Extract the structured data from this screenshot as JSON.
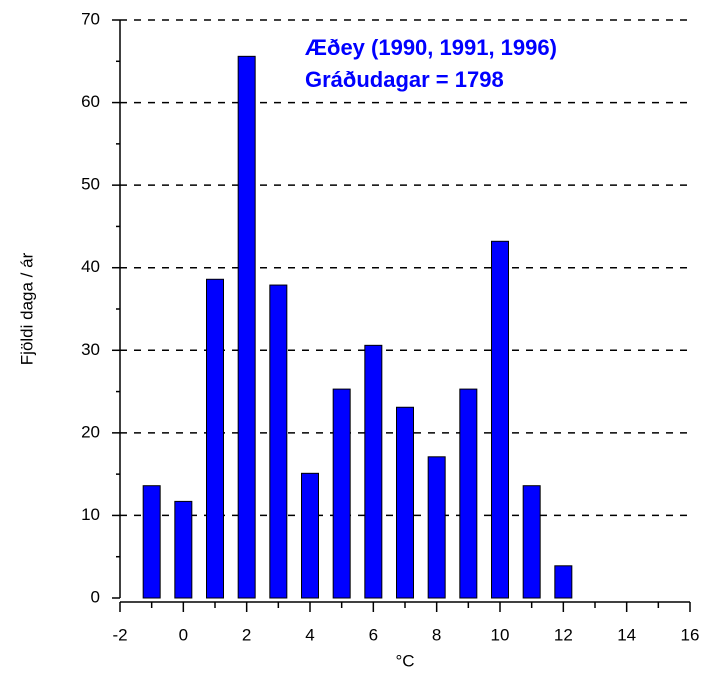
{
  "chart_data": {
    "type": "bar",
    "annotations": [
      "Æðey (1990, 1991, 1996)",
      "Gráðudagar = 1798"
    ],
    "xlabel": "°C",
    "ylabel": "Fjöldi daga / ár",
    "x": [
      -1,
      0,
      1,
      2,
      3,
      4,
      5,
      6,
      7,
      8,
      9,
      10,
      11,
      12,
      13,
      14,
      15
    ],
    "values": [
      13.6,
      11.7,
      38.6,
      65.6,
      37.9,
      15.1,
      25.3,
      30.6,
      23.1,
      17.1,
      25.3,
      43.2,
      13.6,
      3.9,
      0,
      0,
      0
    ],
    "color": "#0000ff",
    "xlim": [
      -2,
      16
    ],
    "xticks": [
      -2,
      0,
      2,
      4,
      6,
      8,
      10,
      12,
      14,
      16
    ],
    "ylim": [
      0,
      70
    ],
    "yticks": [
      0,
      10,
      20,
      30,
      40,
      50,
      60,
      70
    ],
    "grid": true
  }
}
